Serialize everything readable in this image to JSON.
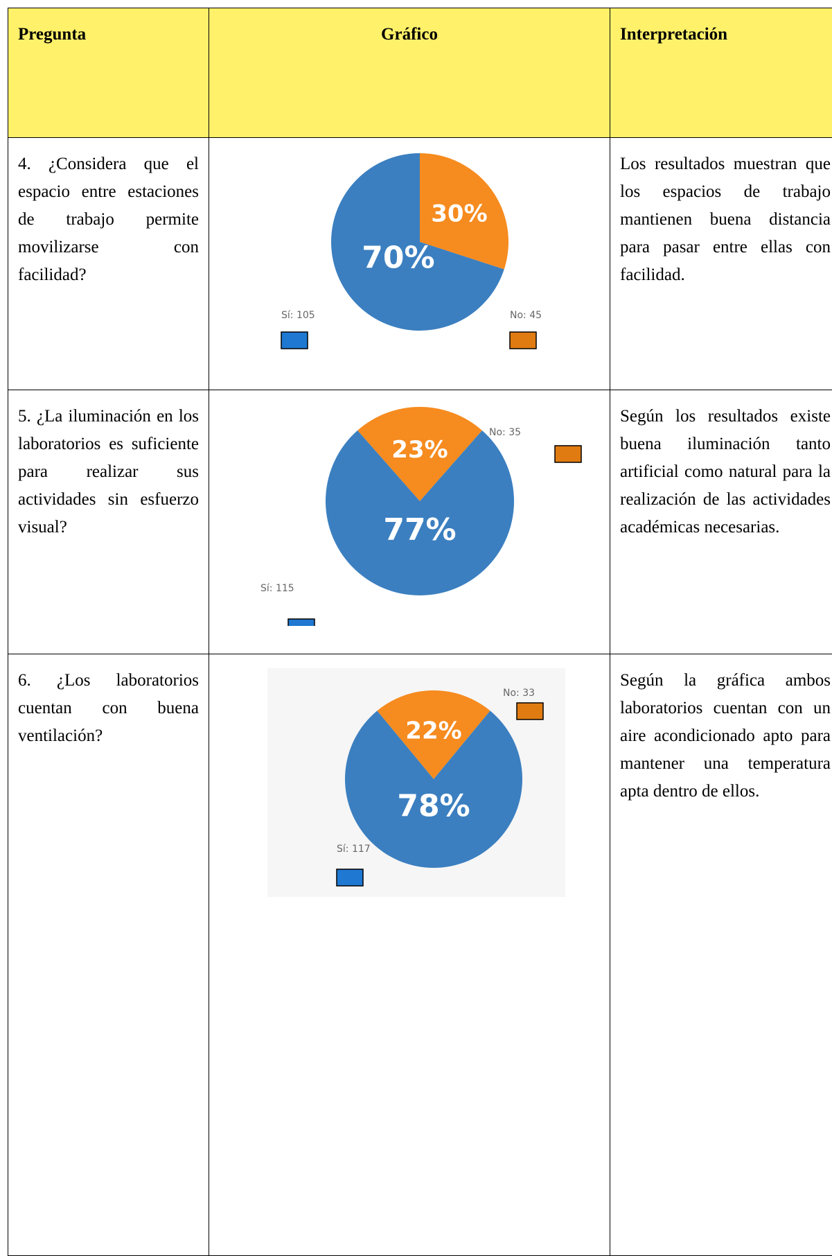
{
  "header": {
    "columns": [
      "Pregunta",
      "Gráfico",
      "Interpretación"
    ]
  },
  "rows": [
    {
      "question": "4. ¿Considera que el espacio entre estaciones de trabajo permite movilizarse con facilidad?",
      "chart": {
        "type": "pie",
        "values": [
          70,
          30
        ],
        "value_labels": [
          "70%",
          "30%"
        ],
        "labels": [
          "Sí: 105",
          "No: 45"
        ],
        "colors": [
          "#3b7fc0",
          "#f68b1f"
        ],
        "legend_colors": [
          "#1f78d1",
          "#e07b12"
        ]
      },
      "interpretation": "Los resultados muestran que los espacios de trabajo mantienen buena distancia para pasar entre ellas con facilidad."
    },
    {
      "question": "5. ¿La iluminación en los laboratorios es suficiente para realizar sus actividades sin esfuerzo visual?",
      "chart": {
        "type": "pie",
        "values": [
          77,
          23
        ],
        "value_labels": [
          "77%",
          "23%"
        ],
        "labels": [
          "Sí: 115",
          "No: 35"
        ],
        "colors": [
          "#3b7fc0",
          "#f68b1f"
        ],
        "legend_colors": [
          "#1f78d1",
          "#e07b12"
        ]
      },
      "interpretation": "Según los resultados existe buena iluminación tanto artificial como natural para la realización de las actividades académicas necesarias."
    },
    {
      "question": "6. ¿Los laboratorios cuentan con buena ventilación?",
      "chart": {
        "type": "pie",
        "values": [
          78,
          22
        ],
        "value_labels": [
          "78%",
          "22%"
        ],
        "labels": [
          "Sí: 117",
          "No: 33"
        ],
        "colors": [
          "#3b7fc0",
          "#f68b1f"
        ],
        "legend_colors": [
          "#1f78d1",
          "#e07b12"
        ]
      },
      "interpretation": "Según la gráfica ambos laboratorios cuentan con un aire acondicionado apto para mantener una temperatura apta dentro de ellos."
    }
  ]
}
